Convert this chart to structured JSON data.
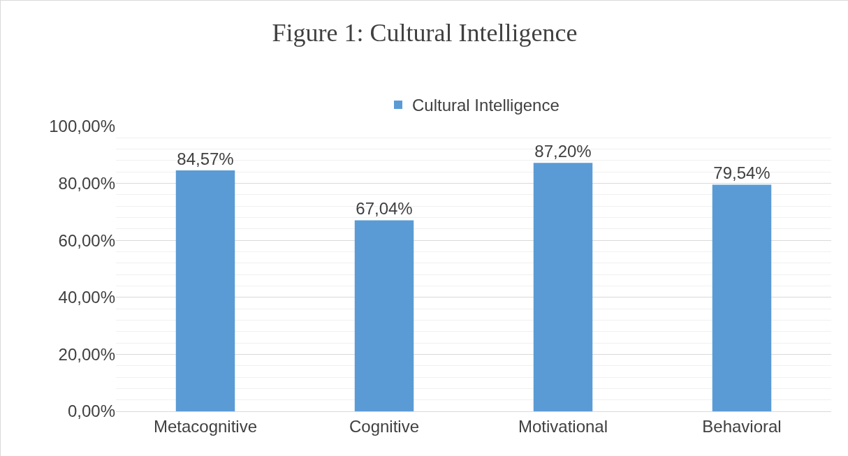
{
  "chart_data": {
    "type": "bar",
    "title": "Figure 1: Cultural Intelligence",
    "categories": [
      "Metacognitive",
      "Cognitive",
      "Motivational",
      "Behavioral"
    ],
    "series": [
      {
        "name": "Cultural Intelligence",
        "color": "#5b9bd5",
        "values": [
          84.57,
          67.04,
          87.2,
          79.54
        ],
        "value_labels": [
          "84,57%",
          "67,04%",
          "87,20%",
          "79,54%"
        ]
      }
    ],
    "ylim": [
      0,
      100
    ],
    "yticks": [
      {
        "value": 0,
        "label": "0,00%"
      },
      {
        "value": 20,
        "label": "20,00%"
      },
      {
        "value": 40,
        "label": "40,00%"
      },
      {
        "value": 60,
        "label": "60,00%"
      },
      {
        "value": 80,
        "label": "80,00%"
      },
      {
        "value": 100,
        "label": "100,00%"
      }
    ],
    "grid": "y",
    "legend": "top"
  }
}
